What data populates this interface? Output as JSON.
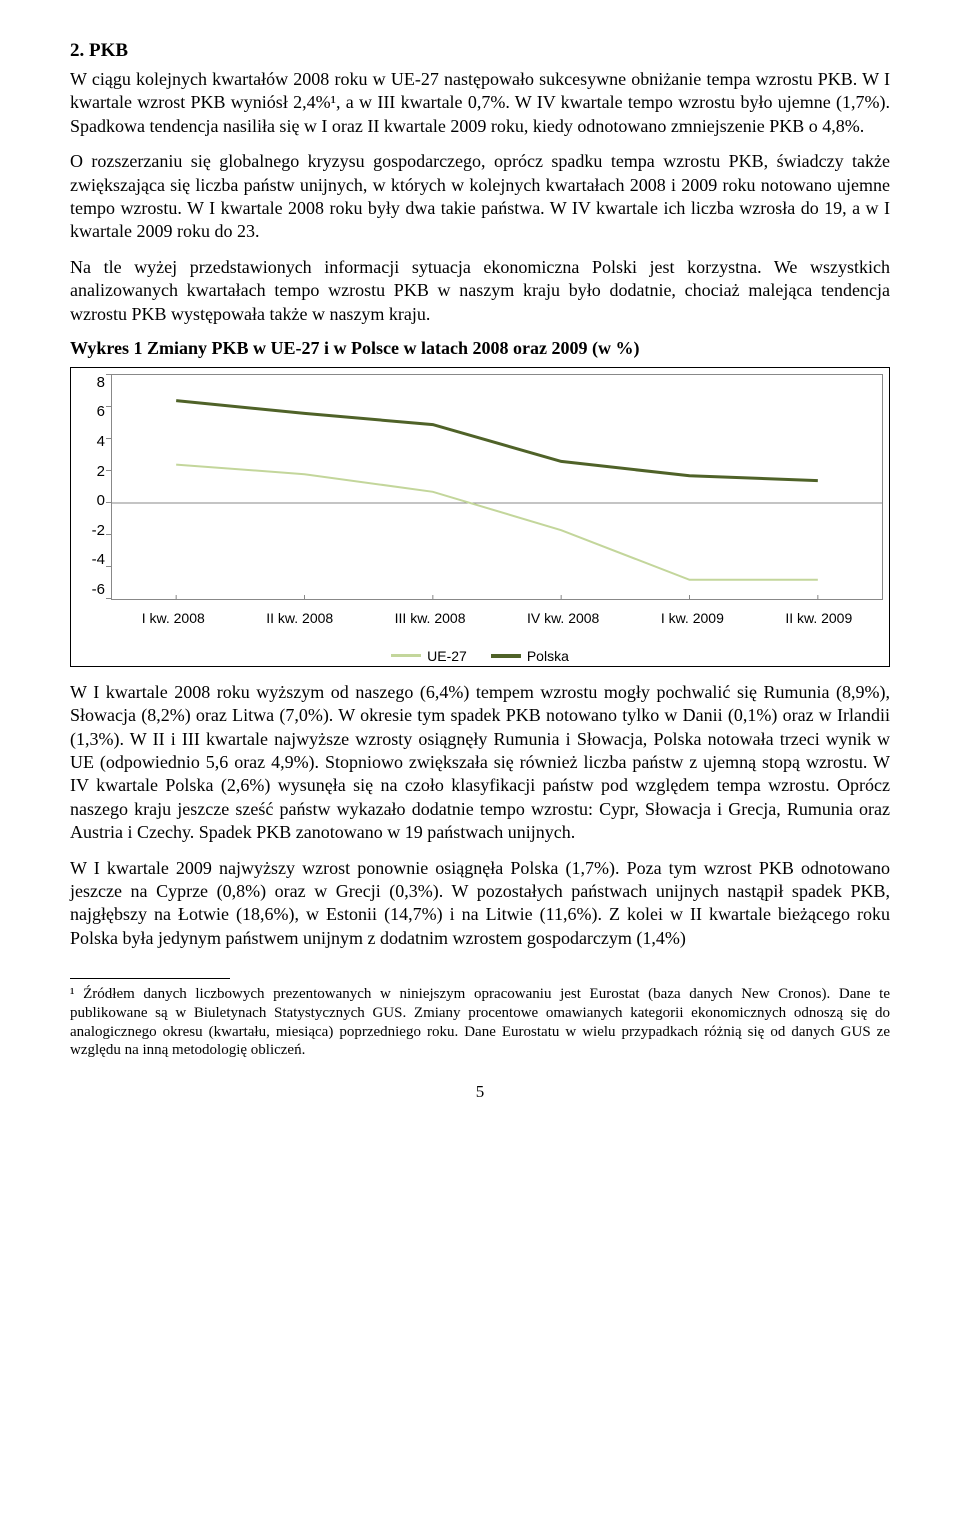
{
  "heading": "2. PKB",
  "para1": "W ciągu kolejnych kwartałów 2008 roku w UE-27 następowało sukcesywne obniżanie tempa wzrostu PKB. W I kwartale wzrost PKB wyniósł 2,4%¹, a w III kwartale 0,7%. W IV kwartale tempo wzrostu było ujemne (1,7%). Spadkowa tendencja nasiliła się w I oraz II kwartale 2009 roku, kiedy odnotowano zmniejszenie PKB o 4,8%.",
  "para2": "O rozszerzaniu się globalnego kryzysu gospodarczego, oprócz spadku tempa wzrostu PKB, świadczy także zwiększająca się liczba państw unijnych, w których w kolejnych kwartałach 2008 i 2009 roku notowano ujemne tempo wzrostu. W I kwartale 2008 roku były dwa takie państwa. W IV kwartale ich liczba wzrosła do 19, a w I kwartale 2009 roku do 23.",
  "para3": "Na tle wyżej przedstawionych informacji sytuacja ekonomiczna Polski jest korzystna. We wszystkich analizowanych kwartałach tempo wzrostu PKB w naszym kraju było dodatnie, chociaż malejąca tendencja wzrostu PKB występowała także w naszym kraju.",
  "chart_title": "Wykres 1 Zmiany PKB w UE-27 i w Polsce w latach 2008 oraz 2009 (w %)",
  "chart": {
    "type": "line",
    "ylim": [
      -6,
      8
    ],
    "ytick_step": 2,
    "yticks": [
      "8",
      "6",
      "4",
      "2",
      "0",
      "-2",
      "-4",
      "-6"
    ],
    "categories": [
      "I kw. 2008",
      "II kw. 2008",
      "III kw. 2008",
      "IV kw. 2008",
      "I kw. 2009",
      "II kw. 2009"
    ],
    "series": [
      {
        "name": "UE-27",
        "color": "#c3d69b",
        "values": [
          2.4,
          1.8,
          0.7,
          -1.7,
          -4.8,
          -4.8
        ],
        "width": 2
      },
      {
        "name": "Polska",
        "color": "#4f6228",
        "values": [
          6.4,
          5.6,
          4.9,
          2.6,
          1.7,
          1.4
        ],
        "width": 3
      }
    ],
    "background_color": "#ffffff",
    "grid_color": "#dddddd",
    "axis_color": "#888888",
    "label_fontsize": 14
  },
  "legend": {
    "s1": "UE-27",
    "s2": "Polska"
  },
  "para4": "W I kwartale 2008 roku wyższym od naszego (6,4%) tempem wzrostu mogły pochwalić się Rumunia (8,9%), Słowacja (8,2%) oraz Litwa (7,0%). W okresie tym spadek PKB notowano tylko w Danii (0,1%) oraz w Irlandii (1,3%). W II i III kwartale najwyższe wzrosty osiągnęły Rumunia i Słowacja, Polska notowała trzeci wynik w UE (odpowiednio 5,6 oraz 4,9%). Stopniowo zwiększała się również liczba państw z ujemną stopą wzrostu. W IV kwartale Polska (2,6%) wysunęła się na czoło klasyfikacji państw pod względem tempa wzrostu. Oprócz naszego kraju jeszcze sześć państw wykazało dodatnie tempo wzrostu: Cypr, Słowacja i Grecja, Rumunia oraz Austria i Czechy. Spadek PKB zanotowano w 19 państwach unijnych.",
  "para5": "W I kwartale 2009 najwyższy wzrost ponownie osiągnęła Polska (1,7%). Poza tym wzrost PKB odnotowano jeszcze na Cyprze (0,8%) oraz w Grecji (0,3%). W pozostałych państwach unijnych nastąpił spadek PKB, najgłębszy na Łotwie (18,6%), w Estonii (14,7%) i na Litwie (11,6%). Z kolei w II kwartale bieżącego roku Polska była jedynym państwem unijnym z dodatnim wzrostem gospodarczym (1,4%)",
  "footnote": "¹ Źródłem danych liczbowych prezentowanych w niniejszym opracowaniu jest Eurostat (baza danych New Cronos). Dane te publikowane są w Biuletynach Statystycznych GUS. Zmiany procentowe omawianych kategorii ekonomicznych odnoszą się do analogicznego okresu (kwartału, miesiąca) poprzedniego roku. Dane Eurostatu w wielu przypadkach różnią się od danych GUS ze względu na inną metodologię obliczeń.",
  "pagenum": "5"
}
